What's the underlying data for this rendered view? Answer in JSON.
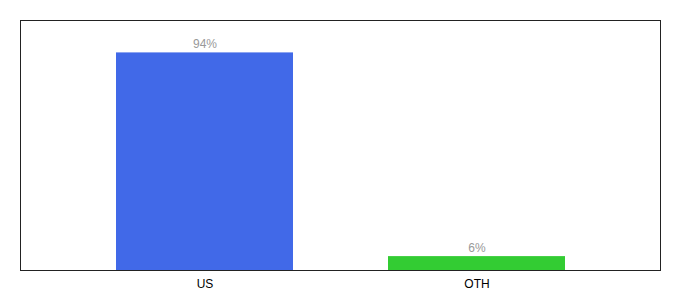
{
  "chart_data": {
    "type": "bar",
    "categories": [
      "US",
      "OTH"
    ],
    "values": [
      94,
      6
    ],
    "value_labels": [
      "94%",
      "6%"
    ],
    "colors": [
      "#4169e8",
      "#33cc33"
    ],
    "ylim": [
      0,
      108
    ],
    "data_labels": true,
    "tick_labels": "x"
  }
}
